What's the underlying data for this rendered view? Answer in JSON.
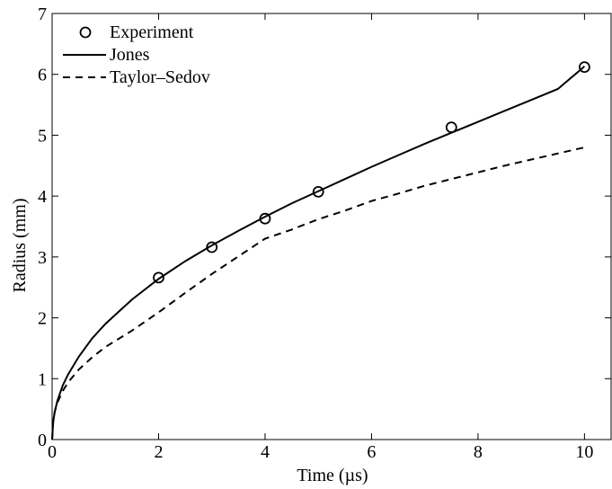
{
  "chart_data": {
    "type": "line",
    "xlabel": "Time (µs)",
    "ylabel": "Radius (mm)",
    "xlim": [
      0,
      10.5
    ],
    "ylim": [
      0,
      7
    ],
    "xticks": [
      0,
      2,
      4,
      6,
      8,
      10
    ],
    "yticks": [
      0,
      1,
      2,
      3,
      4,
      5,
      6,
      7
    ],
    "grid": false,
    "legend_position": "top-left",
    "series": [
      {
        "name": "Experiment",
        "style": "markers-circle",
        "color": "#000000",
        "x": [
          2,
          3,
          4,
          5,
          7.5,
          10
        ],
        "y": [
          2.66,
          3.16,
          3.63,
          4.07,
          5.13,
          6.12
        ]
      },
      {
        "name": "Jones",
        "style": "solid",
        "color": "#000000",
        "x": [
          0,
          0.02,
          0.05,
          0.1,
          0.2,
          0.3,
          0.5,
          0.75,
          1,
          1.5,
          2,
          2.5,
          3,
          3.5,
          4,
          4.5,
          5,
          5.5,
          6,
          6.5,
          7,
          7.5,
          8,
          8.5,
          9,
          9.5,
          10
        ],
        "y": [
          0,
          0.29,
          0.46,
          0.64,
          0.89,
          1.07,
          1.36,
          1.66,
          1.9,
          2.3,
          2.64,
          2.93,
          3.19,
          3.43,
          3.66,
          3.88,
          4.08,
          4.28,
          4.48,
          4.67,
          4.86,
          5.04,
          5.22,
          5.4,
          5.58,
          5.76,
          6.13
        ]
      },
      {
        "name": "Taylor–Sedov",
        "style": "dashed",
        "color": "#000000",
        "x": [
          0,
          0.02,
          0.05,
          0.1,
          0.2,
          0.3,
          0.5,
          0.75,
          1,
          1.5,
          2,
          2.5,
          3,
          3.5,
          4,
          4.5,
          5,
          5.5,
          6,
          6.5,
          7,
          7.5,
          8,
          8.5,
          9,
          9.5,
          10
        ],
        "y": [
          0,
          0.3,
          0.46,
          0.61,
          0.8,
          0.94,
          1.15,
          1.35,
          1.52,
          1.79,
          2.09,
          2.41,
          2.72,
          3.01,
          3.3,
          3.45,
          3.62,
          3.76,
          3.92,
          4.04,
          4.17,
          4.28,
          4.39,
          4.5,
          4.6,
          4.7,
          4.8
        ]
      }
    ]
  }
}
